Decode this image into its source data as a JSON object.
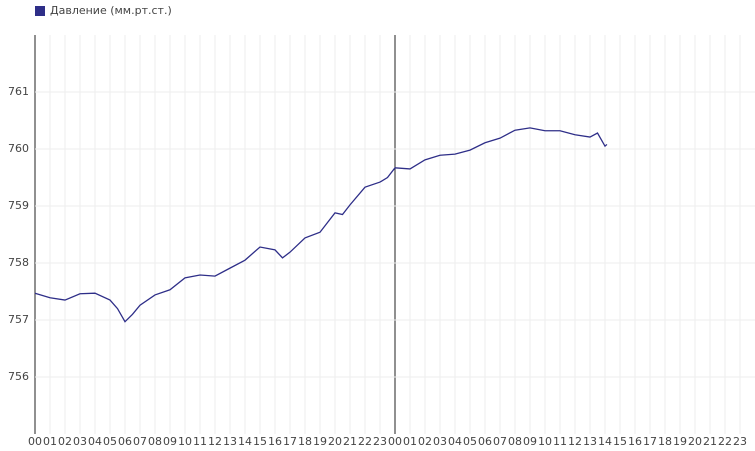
{
  "chart_data": {
    "type": "line",
    "series": [
      {
        "name": "Давление (мм.рт.ст.)",
        "color": "#2e2e88",
        "x": [
          0,
          1,
          2,
          3,
          4,
          5,
          5.5,
          6,
          6.5,
          7,
          8,
          9,
          10,
          11,
          12,
          13,
          14,
          15,
          16,
          16.5,
          17,
          18,
          19,
          20,
          20.5,
          21,
          22,
          23,
          23.5,
          24,
          25,
          26,
          27,
          28,
          29,
          30,
          31,
          32,
          33,
          34,
          35,
          36,
          37,
          37.5,
          38,
          38.13
        ],
        "values": [
          757.47,
          757.39,
          757.35,
          757.46,
          757.47,
          757.35,
          757.2,
          756.97,
          757.1,
          757.26,
          757.44,
          757.53,
          757.74,
          757.79,
          757.77,
          757.91,
          758.05,
          758.28,
          758.23,
          758.09,
          758.19,
          758.44,
          758.54,
          758.88,
          758.85,
          759.02,
          759.33,
          759.42,
          759.5,
          759.67,
          759.65,
          759.81,
          759.89,
          759.91,
          759.98,
          760.11,
          760.19,
          760.33,
          760.37,
          760.32,
          760.32,
          760.25,
          760.21,
          760.28,
          760.05,
          760.08
        ]
      }
    ],
    "xlim": [
      0,
      48
    ],
    "ylim": [
      755,
      762
    ],
    "yticks": [
      756,
      757,
      758,
      759,
      760,
      761
    ],
    "xticks": [
      {
        "value": 0,
        "label": "00"
      },
      {
        "value": 1,
        "label": "01"
      },
      {
        "value": 2,
        "label": "02"
      },
      {
        "value": 3,
        "label": "03"
      },
      {
        "value": 4,
        "label": "04"
      },
      {
        "value": 5,
        "label": "05"
      },
      {
        "value": 6,
        "label": "06"
      },
      {
        "value": 7,
        "label": "07"
      },
      {
        "value": 8,
        "label": "08"
      },
      {
        "value": 9,
        "label": "09"
      },
      {
        "value": 10,
        "label": "10"
      },
      {
        "value": 11,
        "label": "11"
      },
      {
        "value": 12,
        "label": "12"
      },
      {
        "value": 13,
        "label": "13"
      },
      {
        "value": 14,
        "label": "14"
      },
      {
        "value": 15,
        "label": "15"
      },
      {
        "value": 16,
        "label": "16"
      },
      {
        "value": 17,
        "label": "17"
      },
      {
        "value": 18,
        "label": "18"
      },
      {
        "value": 19,
        "label": "19"
      },
      {
        "value": 20,
        "label": "20"
      },
      {
        "value": 21,
        "label": "21"
      },
      {
        "value": 22,
        "label": "22"
      },
      {
        "value": 23,
        "label": "23"
      },
      {
        "value": 24,
        "label": "00"
      },
      {
        "value": 25,
        "label": "01"
      },
      {
        "value": 26,
        "label": "02"
      },
      {
        "value": 27,
        "label": "03"
      },
      {
        "value": 28,
        "label": "04"
      },
      {
        "value": 29,
        "label": "05"
      },
      {
        "value": 30,
        "label": "06"
      },
      {
        "value": 31,
        "label": "07"
      },
      {
        "value": 32,
        "label": "08"
      },
      {
        "value": 33,
        "label": "09"
      },
      {
        "value": 34,
        "label": "10"
      },
      {
        "value": 35,
        "label": "11"
      },
      {
        "value": 36,
        "label": "12"
      },
      {
        "value": 37,
        "label": "13"
      },
      {
        "value": 38,
        "label": "14"
      },
      {
        "value": 39,
        "label": "15"
      },
      {
        "value": 40,
        "label": "16"
      },
      {
        "value": 41,
        "label": "17"
      },
      {
        "value": 42,
        "label": "18"
      },
      {
        "value": 43,
        "label": "19"
      },
      {
        "value": 44,
        "label": "20"
      },
      {
        "value": 45,
        "label": "21"
      },
      {
        "value": 46,
        "label": "22"
      },
      {
        "value": 47,
        "label": "23"
      }
    ],
    "grid": true,
    "legend": "top-left"
  }
}
